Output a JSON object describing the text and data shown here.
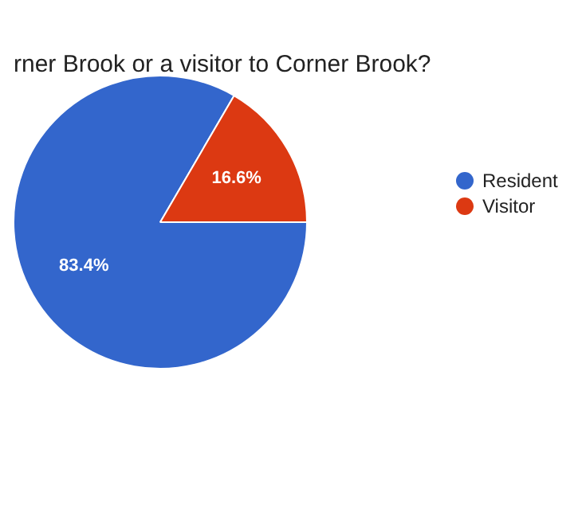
{
  "chart_data": {
    "type": "pie",
    "title": "rner Brook or a visitor to Corner Brook?",
    "categories": [
      "Resident",
      "Visitor"
    ],
    "values": [
      83.4,
      16.6
    ],
    "colors": [
      "#3366cc",
      "#dc3912"
    ],
    "value_labels": [
      "83.4%",
      "16.6%"
    ],
    "legend": "right"
  }
}
